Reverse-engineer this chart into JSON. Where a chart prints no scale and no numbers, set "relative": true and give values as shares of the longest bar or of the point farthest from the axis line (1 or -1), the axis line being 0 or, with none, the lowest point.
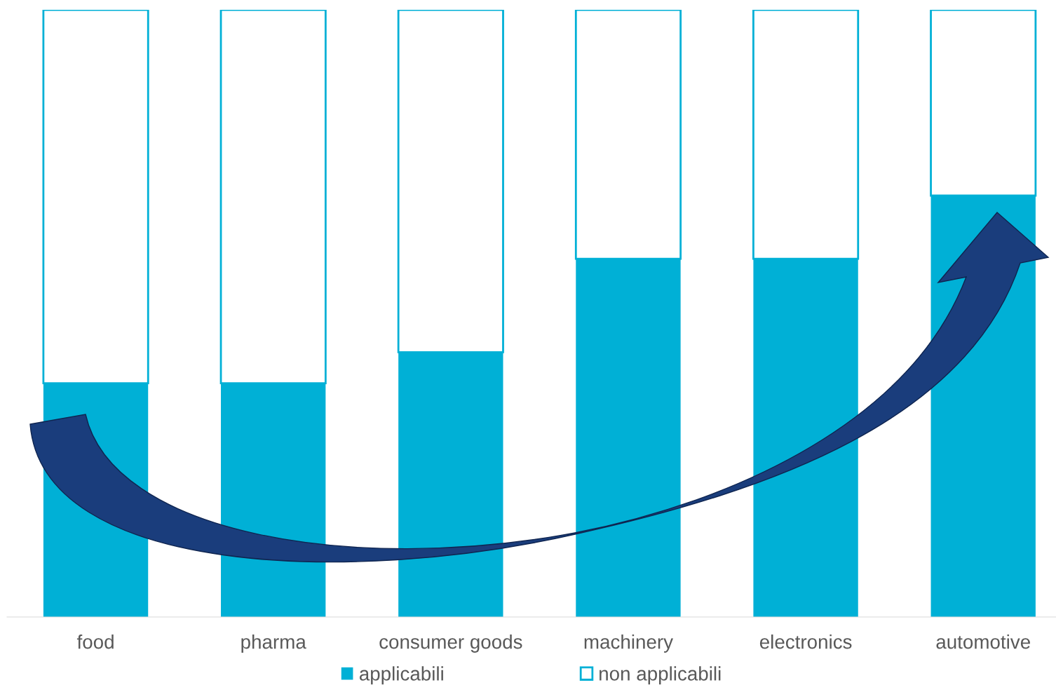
{
  "chart_data": {
    "type": "bar",
    "stacked": true,
    "relative": true,
    "categories": [
      "food",
      "pharma",
      "consumer goods",
      "machinery",
      "electronics",
      "automotive"
    ],
    "series": [
      {
        "name": "applicabili",
        "color": "#00b0d6",
        "values": [
          0.385,
          0.385,
          0.436,
          0.59,
          0.59,
          0.694
        ]
      },
      {
        "name": "non applicabili",
        "color": "#00b0d6",
        "values": [
          0.615,
          0.615,
          0.564,
          0.41,
          0.41,
          0.306
        ]
      }
    ],
    "legend": "bottom",
    "grid": false
  }
}
